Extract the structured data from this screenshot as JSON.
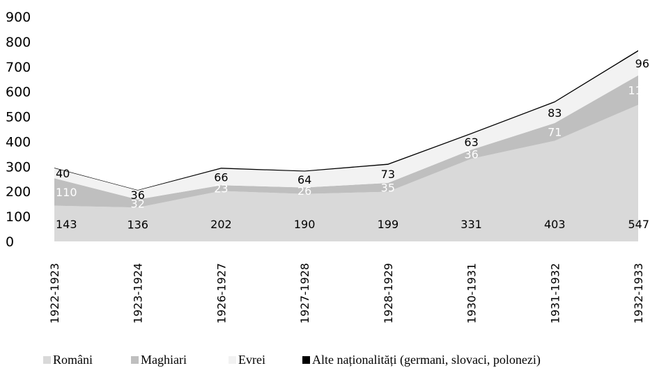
{
  "chart_data": {
    "type": "area",
    "stacked": true,
    "categories": [
      "1922-1923",
      "1923-1924",
      "1926-1927",
      "1927-1928",
      "1928-1929",
      "1930-1931",
      "1931-1932",
      "1932-1933"
    ],
    "series": [
      {
        "name": "Români",
        "values": [
          143,
          136,
          202,
          190,
          199,
          331,
          403,
          547
        ],
        "color": "#d9d9d9",
        "label_color": "#000000"
      },
      {
        "name": "Maghiari",
        "values": [
          110,
          32,
          23,
          26,
          35,
          36,
          71,
          118
        ],
        "color": "#bfbfbf",
        "label_color": "#ffffff"
      },
      {
        "name": "Evrei",
        "values": [
          40,
          36,
          66,
          64,
          73,
          63,
          83,
          96
        ],
        "color": "#f2f2f2",
        "label_color": "#000000"
      },
      {
        "name": "Alte naționalități (germani, slovaci, polonezi)",
        "values": [
          2,
          2,
          4,
          3,
          4,
          4,
          4,
          5
        ],
        "color": "#000000",
        "label_color": "#000000"
      }
    ],
    "ylim": [
      0,
      900
    ],
    "yticks": [
      "0",
      "100",
      "200",
      "300",
      "400",
      "500",
      "600",
      "700",
      "800",
      "900"
    ],
    "grid": false,
    "legend_position": "bottom",
    "title": "",
    "xlabel": "",
    "ylabel": ""
  }
}
